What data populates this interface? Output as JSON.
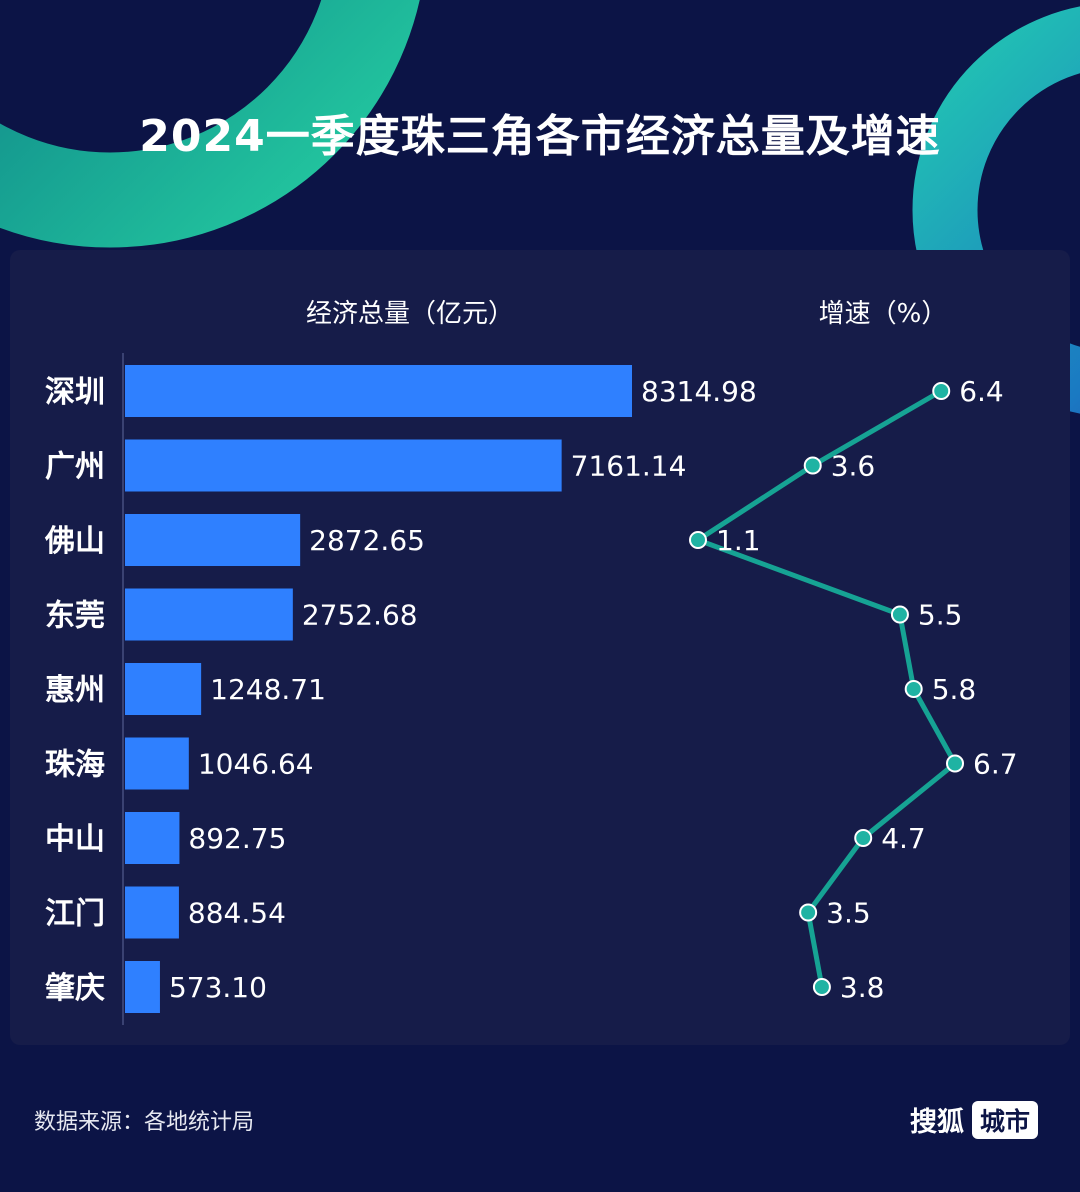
{
  "title": "2024一季度珠三角各市经济总量及增速",
  "colors": {
    "background": "#0c1446",
    "panel": "#161c49",
    "bar": "#2f80ff",
    "line": "#16a394",
    "point": "#1fb3a3",
    "text": "#ffffff"
  },
  "chart_data": {
    "type": "bar",
    "categories": [
      "深圳",
      "广州",
      "佛山",
      "东莞",
      "惠州",
      "珠海",
      "中山",
      "江门",
      "肇庆"
    ],
    "series": [
      {
        "name": "经济总量（亿元）",
        "type": "bar",
        "values": [
          8314.98,
          7161.14,
          2872.65,
          2752.68,
          1248.71,
          1046.64,
          892.75,
          884.54,
          573.1
        ],
        "labels": [
          "8314.98",
          "7161.14",
          "2872.65",
          "2752.68",
          "1248.71",
          "1046.64",
          "892.75",
          "884.54",
          "573.10"
        ]
      },
      {
        "name": "增速（%）",
        "type": "line",
        "values": [
          6.4,
          3.6,
          1.1,
          5.5,
          5.8,
          6.7,
          4.7,
          3.5,
          3.8
        ],
        "labels": [
          "6.4",
          "3.6",
          "1.1",
          "5.5",
          "5.8",
          "6.7",
          "4.7",
          "3.5",
          "3.8"
        ]
      }
    ],
    "orientation": "horizontal",
    "grid": false
  },
  "footer": {
    "source": "数据来源：各地统计局",
    "brand": "搜狐",
    "brand_tag": "城市"
  }
}
